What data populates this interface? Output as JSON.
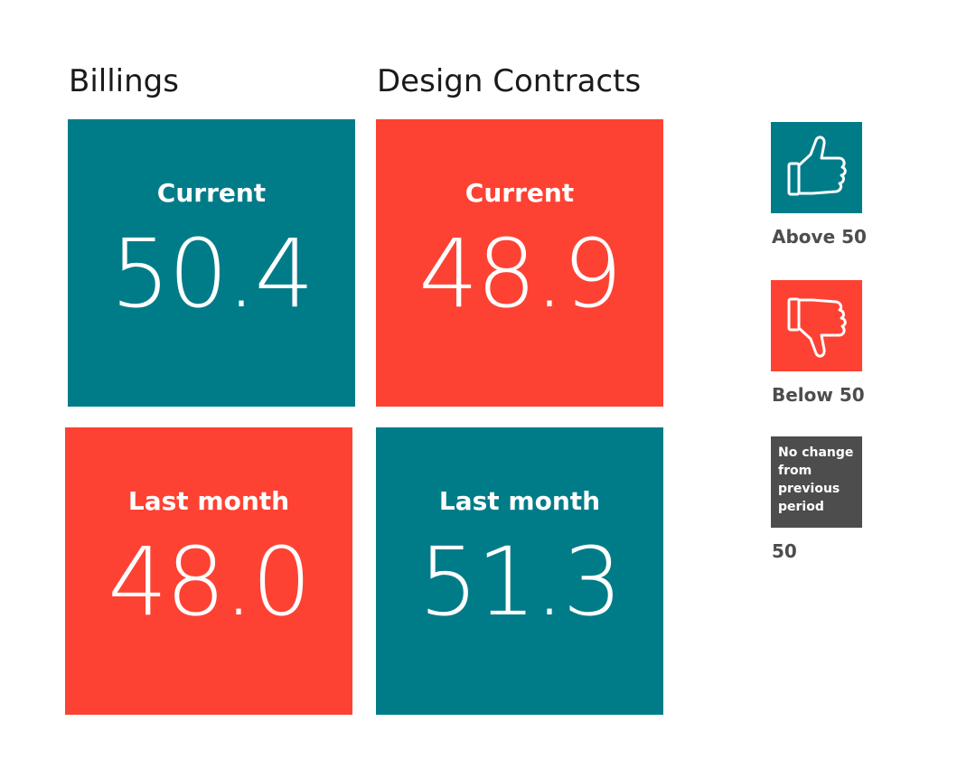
{
  "columns": {
    "billings": {
      "title": "Billings"
    },
    "design_contracts": {
      "title": "Design Contracts"
    }
  },
  "tiles": {
    "billings_current": {
      "label": "Current",
      "value": "50.4",
      "color": "#007c89"
    },
    "design_current": {
      "label": "Current",
      "value": "48.9",
      "color": "#fd4233"
    },
    "billings_last_month": {
      "label": "Last month",
      "value": "48.0",
      "color": "#fd4233"
    },
    "design_last_month": {
      "label": "Last month",
      "value": "51.3",
      "color": "#007c89"
    }
  },
  "legend": {
    "above": {
      "label": "Above 50",
      "icon": "thumbs-up-icon",
      "color": "#007c89"
    },
    "below": {
      "label": "Below 50",
      "icon": "thumbs-down-icon",
      "color": "#fd4233"
    },
    "no_change": {
      "swatch_text": "No change\nfrom\nprevious\nperiod",
      "label": "50",
      "color": "#4d4d4d"
    }
  }
}
